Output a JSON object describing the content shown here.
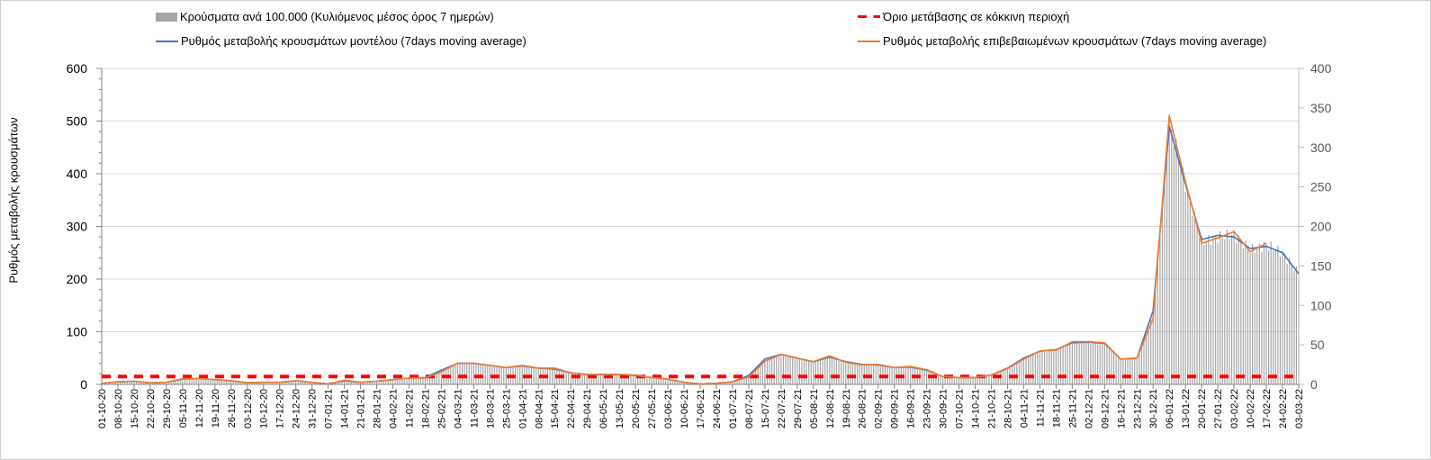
{
  "chart_data": {
    "type": "bar+line",
    "title": "",
    "ylabel": "Ρυθμός μεταβολής κρουσμάτων",
    "ylim_left": [
      0,
      600
    ],
    "yticks_left": [
      "0",
      "100",
      "200",
      "300",
      "400",
      "500",
      "600"
    ],
    "ylim_right": [
      0,
      400
    ],
    "yticks_right": [
      "0",
      "50",
      "100",
      "150",
      "200",
      "250",
      "300",
      "350",
      "400"
    ],
    "legend": {
      "bars": "Κρούσματα ανά 100.000 (Κυλιόμενος μέσος όρος 7 ημερών)",
      "threshold": "Όριο μετάβασης σε κόκκινη περιοχή",
      "model": "Ρυθμός μεταβολής κρουσμάτων μοντέλου (7days moving average)",
      "confirmed": "Ρυθμός μεταβολής επιβεβαιωμένων κρουσμάτων (7days moving average)"
    },
    "legend_position": "top",
    "colors": {
      "bars": "#a6a6a6",
      "threshold": "#ff0000",
      "model": "#4472c4",
      "confirmed": "#ed7d31"
    },
    "x": [
      "01-10-20",
      "08-10-20",
      "15-10-20",
      "22-10-20",
      "29-10-20",
      "05-11-20",
      "12-11-20",
      "19-11-20",
      "26-11-20",
      "03-12-20",
      "10-12-20",
      "17-12-20",
      "24-12-20",
      "31-12-20",
      "07-01-21",
      "14-01-21",
      "21-01-21",
      "28-01-21",
      "04-02-21",
      "11-02-21",
      "18-02-21",
      "25-02-21",
      "04-03-21",
      "11-03-21",
      "18-03-21",
      "25-03-21",
      "01-04-21",
      "08-04-21",
      "15-04-21",
      "22-04-21",
      "29-04-21",
      "06-05-21",
      "13-05-21",
      "20-05-21",
      "27-05-21",
      "03-06-21",
      "10-06-21",
      "17-06-21",
      "24-06-21",
      "01-07-21",
      "08-07-21",
      "15-07-21",
      "22-07-21",
      "29-07-21",
      "05-08-21",
      "12-08-21",
      "19-08-21",
      "26-08-21",
      "02-09-21",
      "09-09-21",
      "16-09-21",
      "23-09-21",
      "30-09-21",
      "07-10-21",
      "14-10-21",
      "21-10-21",
      "28-10-21",
      "04-11-21",
      "11-11-21",
      "18-11-21",
      "25-11-21",
      "02-12-21",
      "09-12-21",
      "16-12-21",
      "23-12-21",
      "30-12-21",
      "06-01-22",
      "13-01-22",
      "20-01-22",
      "27-01-22",
      "03-02-22",
      "10-02-22",
      "17-02-22",
      "24-02-22",
      "03-03-22"
    ],
    "bars": [
      2,
      5,
      6,
      3,
      4,
      11,
      11,
      9,
      7,
      3,
      4,
      4,
      7,
      4,
      1,
      8,
      4,
      6,
      9,
      12,
      12,
      25,
      40,
      40,
      36,
      32,
      36,
      31,
      30,
      22,
      19,
      18,
      19,
      18,
      13,
      10,
      4,
      1,
      2,
      5,
      15,
      45,
      57,
      50,
      43,
      53,
      42,
      37,
      38,
      32,
      33,
      28,
      15,
      13,
      13,
      18,
      30,
      48,
      63,
      65,
      80,
      80,
      78,
      48,
      50,
      130,
      500,
      380,
      270,
      280,
      285,
      255,
      265,
      250,
      210
    ],
    "model": [
      2,
      5,
      6,
      3,
      4,
      10,
      11,
      9,
      7,
      3,
      4,
      4,
      7,
      4,
      1,
      7,
      4,
      6,
      9,
      12,
      13,
      27,
      40,
      40,
      36,
      32,
      35,
      31,
      29,
      22,
      19,
      19,
      19,
      17,
      13,
      10,
      4,
      1,
      2,
      5,
      17,
      48,
      57,
      50,
      43,
      52,
      43,
      38,
      37,
      32,
      33,
      27,
      15,
      13,
      13,
      18,
      31,
      50,
      63,
      66,
      79,
      80,
      78,
      48,
      50,
      140,
      490,
      380,
      275,
      283,
      280,
      258,
      262,
      250,
      210
    ],
    "confirmed": [
      2,
      5,
      6,
      3,
      4,
      11,
      11,
      9,
      7,
      3,
      4,
      4,
      7,
      4,
      1,
      8,
      4,
      6,
      9,
      12,
      12,
      24,
      40,
      40,
      36,
      32,
      36,
      31,
      31,
      22,
      19,
      18,
      19,
      18,
      13,
      10,
      4,
      1,
      2,
      5,
      14,
      44,
      57,
      50,
      43,
      54,
      42,
      37,
      38,
      32,
      34,
      28,
      15,
      13,
      13,
      18,
      30,
      48,
      63,
      65,
      81,
      81,
      79,
      48,
      50,
      125,
      510,
      385,
      268,
      278,
      290,
      252,
      268,
      null,
      null
    ],
    "threshold": 15
  }
}
